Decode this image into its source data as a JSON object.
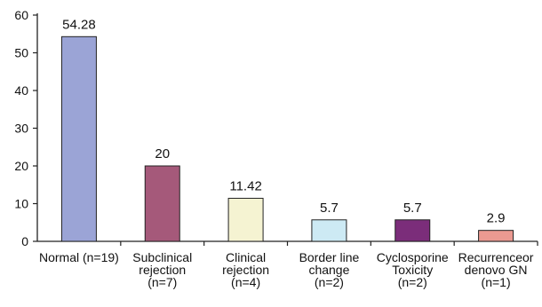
{
  "chart_data": {
    "type": "bar",
    "title": "",
    "xlabel": "",
    "ylabel": "",
    "ylim": [
      0,
      60
    ],
    "yticks": [
      0,
      10,
      20,
      30,
      40,
      50,
      60
    ],
    "grid": false,
    "legend": "none",
    "categories": [
      [
        "Normal (n=19)"
      ],
      [
        "Subclinical",
        "rejection",
        "(n=7)"
      ],
      [
        "Clinical",
        "rejection",
        "(n=4)"
      ],
      [
        "Border line",
        "change",
        "(n=2)"
      ],
      [
        "Cyclosporine",
        "Toxicity",
        "(n=2)"
      ],
      [
        "Recurrenceor",
        "denovo GN",
        "(n=1)"
      ]
    ],
    "values": [
      54.28,
      20,
      11.42,
      5.7,
      5.7,
      2.9
    ],
    "value_labels": [
      "54.28",
      "20",
      "11.42",
      "5.7",
      "5.7",
      "2.9"
    ],
    "bar_colors": [
      "#9ba4d6",
      "#a5597a",
      "#f5f3d2",
      "#cdeaf4",
      "#7b2d7a",
      "#eb9a91"
    ],
    "bar_stroke": "#222222",
    "axis_color": "#222222"
  }
}
